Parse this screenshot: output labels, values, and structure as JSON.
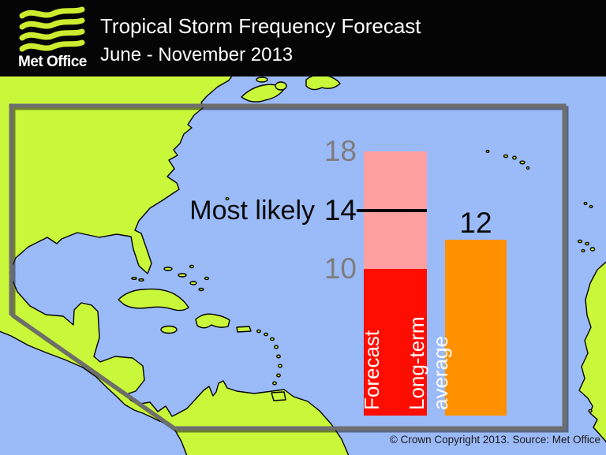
{
  "header": {
    "brand": "Met Office",
    "title": "Tropical Storm Frequency Forecast",
    "subtitle": "June - November 2013"
  },
  "chart_data": {
    "type": "bar",
    "title": "Tropical Storm Frequency Forecast",
    "subtitle": "June - November 2013",
    "categories": [
      "Forecast",
      "Long-term average"
    ],
    "series": [
      {
        "name": "Forecast",
        "most_likely": 14,
        "range_low": 10,
        "range_high": 18
      },
      {
        "name": "Long-term average",
        "value": 12
      }
    ],
    "ylim": [
      0,
      18
    ],
    "annotations": {
      "most_likely_label": "Most likely",
      "tick_high": "18",
      "tick_mid": "14",
      "tick_low": "10",
      "average_value": "12"
    },
    "bar_text": {
      "forecast": "Forecast",
      "average": "Long-term\naverage"
    },
    "colors": {
      "forecast_core": "#ff0d00",
      "forecast_range": "#ffa0a0",
      "average": "#ff9100",
      "most_likely_line": "#000000",
      "tick_gray": "#7d7d7d"
    }
  },
  "map": {
    "description": "North Atlantic hurricane region with gray forecast-area outline",
    "colors": {
      "ocean": "#9bbaf8",
      "land": "#c9f83b",
      "outline": "#6e6e6e"
    }
  },
  "footer": {
    "copyright": "© Crown Copyright 2013. Source: Met Office"
  }
}
